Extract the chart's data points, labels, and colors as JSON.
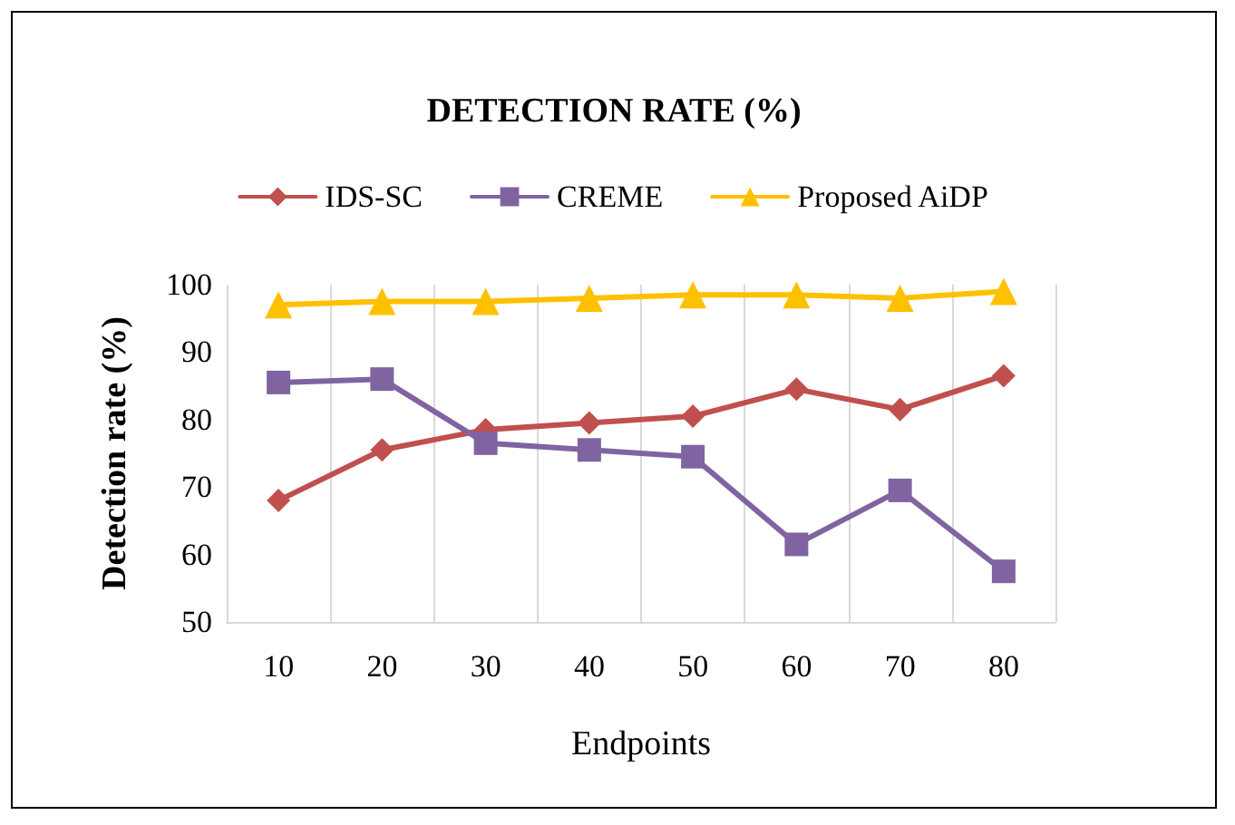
{
  "chart_data": {
    "type": "line",
    "title": "DETECTION RATE (%)",
    "xlabel": "Endpoints",
    "ylabel": "Detection rate (%)",
    "categories": [
      "10",
      "20",
      "30",
      "40",
      "50",
      "60",
      "70",
      "80"
    ],
    "series": [
      {
        "name": "IDS-SC",
        "color": "#c0504d",
        "marker": "diamond",
        "values": [
          68,
          75.5,
          78.5,
          79.5,
          80.5,
          84.5,
          81.5,
          86.5
        ]
      },
      {
        "name": "CREME",
        "color": "#8064a2",
        "marker": "square",
        "values": [
          85.5,
          86,
          76.5,
          75.5,
          74.5,
          61.5,
          69.5,
          57.5
        ]
      },
      {
        "name": "Proposed AiDP",
        "color": "#ffc000",
        "marker": "triangle",
        "values": [
          97,
          97.5,
          97.5,
          98,
          98.5,
          98.5,
          98,
          99
        ]
      }
    ],
    "ylim": [
      50,
      100
    ],
    "yticks": [
      50,
      60,
      70,
      80,
      90,
      100
    ],
    "grid": "x",
    "legend": "top",
    "line_style": "solid"
  }
}
